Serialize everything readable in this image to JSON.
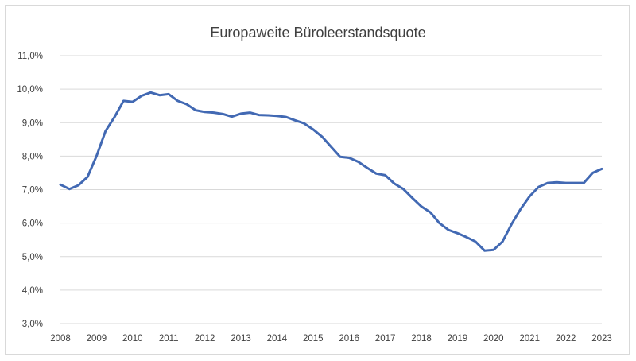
{
  "chart_data": {
    "type": "line",
    "title": "Europaweite Büroleerstandsquote",
    "xlabel": "",
    "ylabel": "",
    "x_tick_labels": [
      "2008",
      "2009",
      "2010",
      "2011",
      "2012",
      "2013",
      "2014",
      "2015",
      "2016",
      "2017",
      "2018",
      "2019",
      "2020",
      "2021",
      "2022",
      "2023"
    ],
    "y_tick_labels": [
      "3,0%",
      "4,0%",
      "5,0%",
      "6,0%",
      "7,0%",
      "8,0%",
      "9,0%",
      "10,0%",
      "11,0%"
    ],
    "ylim": [
      3.0,
      11.0
    ],
    "xlim": [
      2008,
      2023
    ],
    "grid": true,
    "legend": "none",
    "series": [
      {
        "color": "#4269b3",
        "x": [
          2008.0,
          2008.25,
          2008.5,
          2008.75,
          2009.0,
          2009.25,
          2009.5,
          2009.75,
          2010.0,
          2010.25,
          2010.5,
          2010.75,
          2011.0,
          2011.25,
          2011.5,
          2011.75,
          2012.0,
          2012.25,
          2012.5,
          2012.75,
          2013.0,
          2013.25,
          2013.5,
          2013.75,
          2014.0,
          2014.25,
          2014.5,
          2014.75,
          2015.0,
          2015.25,
          2015.5,
          2015.75,
          2016.0,
          2016.25,
          2016.5,
          2016.75,
          2017.0,
          2017.25,
          2017.5,
          2017.75,
          2018.0,
          2018.25,
          2018.5,
          2018.75,
          2019.0,
          2019.25,
          2019.5,
          2019.75,
          2020.0,
          2020.25,
          2020.5,
          2020.75,
          2021.0,
          2021.25,
          2021.5,
          2021.75,
          2022.0,
          2022.25,
          2022.5,
          2022.75,
          2023.0
        ],
        "y": [
          7.15,
          7.02,
          7.13,
          7.38,
          8.0,
          8.75,
          9.17,
          9.65,
          9.62,
          9.8,
          9.9,
          9.82,
          9.85,
          9.65,
          9.55,
          9.37,
          9.32,
          9.3,
          9.26,
          9.18,
          9.27,
          9.3,
          9.23,
          9.22,
          9.2,
          9.17,
          9.07,
          8.98,
          8.8,
          8.58,
          8.28,
          7.98,
          7.95,
          7.83,
          7.65,
          7.48,
          7.43,
          7.18,
          7.02,
          6.75,
          6.5,
          6.32,
          6.0,
          5.8,
          5.7,
          5.58,
          5.45,
          5.18,
          5.2,
          5.45,
          5.97,
          6.42,
          6.8,
          7.08,
          7.2,
          7.22,
          7.2,
          7.2,
          7.2,
          7.5,
          7.62
        ]
      }
    ]
  }
}
